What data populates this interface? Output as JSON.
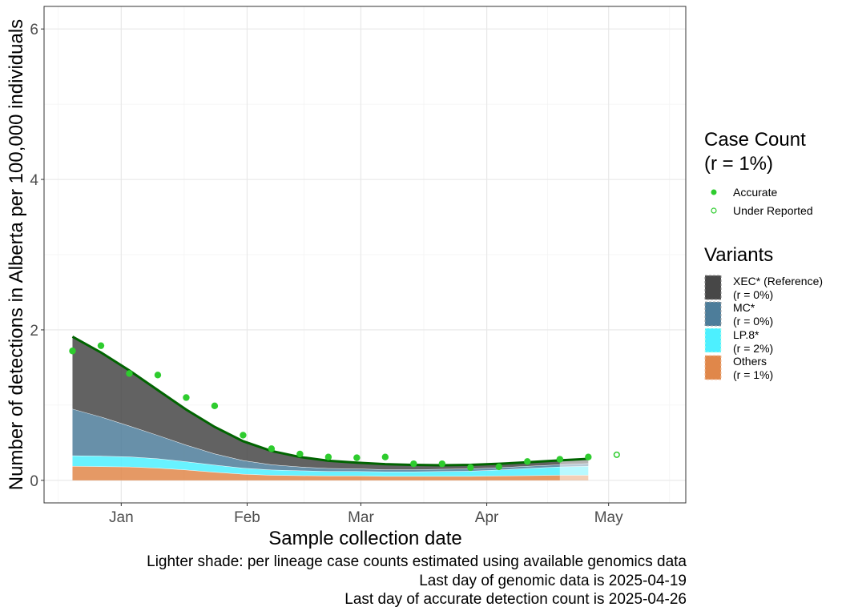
{
  "chart_data": {
    "type": "area",
    "xlabel": "Sample collection date",
    "ylabel": "Number of detections in Alberta per 100,000 individuals",
    "x_tick_labels": [
      "Jan",
      "Feb",
      "Mar",
      "Apr",
      "May"
    ],
    "x_tick_dates": [
      "2025-01-01",
      "2025-02-01",
      "2025-03-01",
      "2025-04-01",
      "2025-05-01"
    ],
    "xlim": [
      "2024-12-13",
      "2025-05-20"
    ],
    "y_tick_labels": [
      "0",
      "2",
      "4",
      "6"
    ],
    "y_ticks": [
      0,
      2,
      4,
      6
    ],
    "ylim": [
      -0.3,
      6.3
    ],
    "grid": true,
    "legend_position": "right",
    "case_count_legend": {
      "title_line1": "Case Count",
      "title_line2": "(r = 1%)",
      "items": [
        {
          "label": "Accurate",
          "style": "filled",
          "color": "#2ecc2e"
        },
        {
          "label": "Under Reported",
          "style": "hollow",
          "color": "#2ecc2e"
        }
      ]
    },
    "variants_legend": {
      "title": "Variants",
      "items": [
        {
          "name": "XEC* (Reference)",
          "rate": "(r = 0%)",
          "color": "#474747"
        },
        {
          "name": "MC*",
          "rate": "(r = 0%)",
          "color": "#4d7d9a"
        },
        {
          "name": "LP.8*",
          "rate": "(r = 2%)",
          "color": "#4df0ff"
        },
        {
          "name": "Others",
          "rate": "(r = 1%)",
          "color": "#e0874a"
        }
      ]
    },
    "area_x": [
      "2024-12-20",
      "2024-12-27",
      "2025-01-03",
      "2025-01-10",
      "2025-01-17",
      "2025-01-24",
      "2025-01-31",
      "2025-02-07",
      "2025-02-14",
      "2025-02-21",
      "2025-02-28",
      "2025-03-07",
      "2025-03-14",
      "2025-03-21",
      "2025-03-28",
      "2025-04-04",
      "2025-04-11",
      "2025-04-19",
      "2025-04-26"
    ],
    "series": [
      {
        "name": "Others",
        "values": [
          0.19,
          0.185,
          0.18,
          0.165,
          0.14,
          0.11,
          0.085,
          0.07,
          0.065,
          0.06,
          0.06,
          0.055,
          0.055,
          0.055,
          0.055,
          0.06,
          0.065,
          0.07,
          0.07
        ]
      },
      {
        "name": "LP.8*",
        "values": [
          0.14,
          0.14,
          0.135,
          0.125,
          0.11,
          0.095,
          0.08,
          0.07,
          0.065,
          0.06,
          0.06,
          0.06,
          0.06,
          0.065,
          0.07,
          0.08,
          0.095,
          0.11,
          0.12
        ]
      },
      {
        "name": "MC*",
        "values": [
          0.62,
          0.52,
          0.41,
          0.31,
          0.22,
          0.15,
          0.1,
          0.07,
          0.05,
          0.04,
          0.035,
          0.03,
          0.03,
          0.03,
          0.03,
          0.03,
          0.03,
          0.03,
          0.035
        ]
      },
      {
        "name": "XEC* (Reference)",
        "values": [
          0.96,
          0.86,
          0.73,
          0.6,
          0.47,
          0.35,
          0.25,
          0.18,
          0.13,
          0.1,
          0.08,
          0.07,
          0.06,
          0.05,
          0.05,
          0.05,
          0.05,
          0.05,
          0.05
        ]
      }
    ],
    "estimated_from": "2025-04-19",
    "total_line": {
      "x": [
        "2024-12-20",
        "2024-12-27",
        "2025-01-03",
        "2025-01-10",
        "2025-01-17",
        "2025-01-24",
        "2025-01-31",
        "2025-02-07",
        "2025-02-14",
        "2025-02-21",
        "2025-02-28",
        "2025-03-07",
        "2025-03-14",
        "2025-03-21",
        "2025-03-28",
        "2025-04-04",
        "2025-04-11",
        "2025-04-19",
        "2025-04-26"
      ],
      "values": [
        1.91,
        1.7,
        1.46,
        1.2,
        0.94,
        0.71,
        0.52,
        0.39,
        0.31,
        0.26,
        0.235,
        0.215,
        0.205,
        0.2,
        0.205,
        0.22,
        0.24,
        0.265,
        0.285
      ]
    },
    "points": [
      {
        "x": "2024-12-20",
        "y": 1.72,
        "type": "Accurate"
      },
      {
        "x": "2024-12-27",
        "y": 1.79,
        "type": "Accurate"
      },
      {
        "x": "2025-01-03",
        "y": 1.42,
        "type": "Accurate"
      },
      {
        "x": "2025-01-10",
        "y": 1.4,
        "type": "Accurate"
      },
      {
        "x": "2025-01-17",
        "y": 1.1,
        "type": "Accurate"
      },
      {
        "x": "2025-01-24",
        "y": 0.99,
        "type": "Accurate"
      },
      {
        "x": "2025-01-31",
        "y": 0.6,
        "type": "Accurate"
      },
      {
        "x": "2025-02-07",
        "y": 0.42,
        "type": "Accurate"
      },
      {
        "x": "2025-02-14",
        "y": 0.35,
        "type": "Accurate"
      },
      {
        "x": "2025-02-21",
        "y": 0.31,
        "type": "Accurate"
      },
      {
        "x": "2025-02-28",
        "y": 0.3,
        "type": "Accurate"
      },
      {
        "x": "2025-03-07",
        "y": 0.31,
        "type": "Accurate"
      },
      {
        "x": "2025-03-14",
        "y": 0.22,
        "type": "Accurate"
      },
      {
        "x": "2025-03-21",
        "y": 0.22,
        "type": "Accurate"
      },
      {
        "x": "2025-03-28",
        "y": 0.17,
        "type": "Accurate"
      },
      {
        "x": "2025-04-04",
        "y": 0.18,
        "type": "Accurate"
      },
      {
        "x": "2025-04-11",
        "y": 0.25,
        "type": "Accurate"
      },
      {
        "x": "2025-04-19",
        "y": 0.28,
        "type": "Accurate"
      },
      {
        "x": "2025-04-26",
        "y": 0.31,
        "type": "Accurate"
      },
      {
        "x": "2025-05-03",
        "y": 0.34,
        "type": "Under Reported"
      }
    ],
    "colors": {
      "total_line": "#006400",
      "points": "#2ecc2e"
    }
  },
  "captions": {
    "line1": "Lighter shade: per lineage case counts estimated using available genomics data",
    "line2": "Last day of genomic data is 2025-04-19",
    "line3": "Last day of accurate detection count is 2025-04-26"
  }
}
